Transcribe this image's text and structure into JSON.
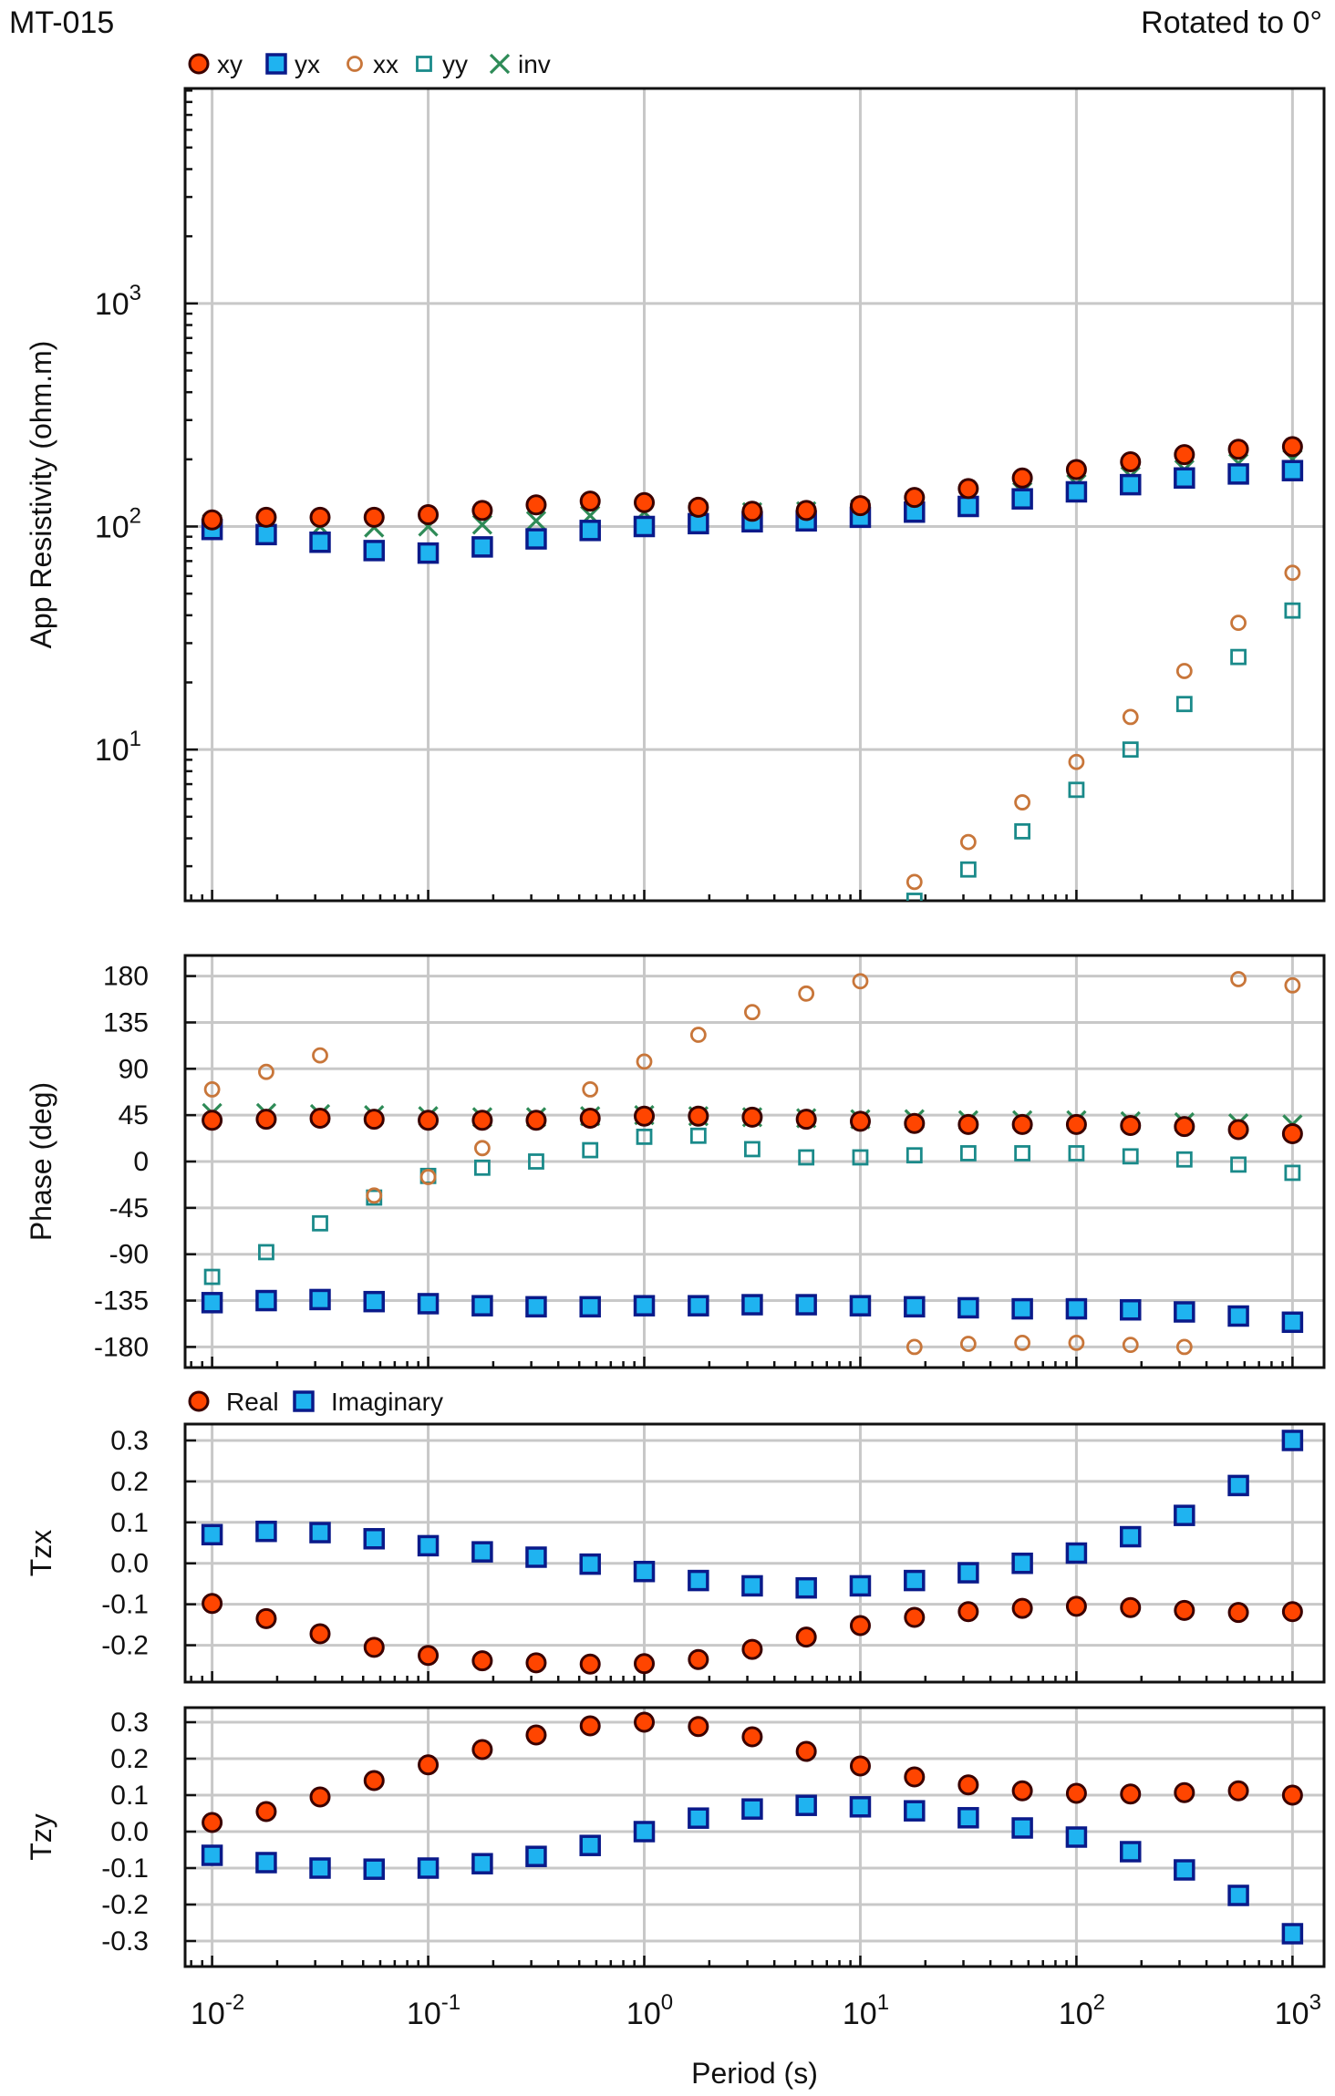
{
  "header": {
    "site": "MT-015",
    "rotation": "Rotated to 0°"
  },
  "colors": {
    "xy_fill": "#ff4500",
    "xy_edge": "#3a0000",
    "yx_fill": "#1fb3f0",
    "yx_edge": "#0a1a8a",
    "xx": "#c8763a",
    "yy": "#1a8a8a",
    "inv": "#2e8b57"
  },
  "x_axis": {
    "label": "Period (s)",
    "scale": "log",
    "range": [
      0.0075,
      1400
    ],
    "major_ticks": [
      0.01,
      0.1,
      1,
      10,
      100,
      1000
    ],
    "tick_labels": [
      {
        "base": "10",
        "exp": "-2"
      },
      {
        "base": "10",
        "exp": "-1"
      },
      {
        "base": "10",
        "exp": "0"
      },
      {
        "base": "10",
        "exp": "1"
      },
      {
        "base": "10",
        "exp": "2"
      },
      {
        "base": "10",
        "exp": "3"
      }
    ]
  },
  "legend_main": [
    "xy",
    "yx",
    "xx",
    "yy",
    "inv"
  ],
  "legend_tipper": [
    "Real",
    "Imaginary"
  ],
  "chart_data": [
    {
      "type": "scatter",
      "panel": "resistivity",
      "ylabel": "App Resistivity (ohm.m)",
      "yscale": "log",
      "ylim": [
        2.1,
        9200
      ],
      "y_ticks": [
        10,
        100,
        1000
      ],
      "y_tick_labels": [
        {
          "base": "10",
          "exp": "1"
        },
        {
          "base": "10",
          "exp": "2"
        },
        {
          "base": "10",
          "exp": "3"
        }
      ],
      "grid": true,
      "x": [
        0.01,
        0.0178,
        0.0316,
        0.0562,
        0.1,
        0.178,
        0.316,
        0.562,
        1,
        1.78,
        3.16,
        5.62,
        10,
        17.8,
        31.6,
        56.2,
        100,
        178,
        316,
        562,
        1000
      ],
      "series": [
        {
          "name": "xy",
          "values": [
            107,
            110,
            110,
            110,
            113,
            118,
            125,
            130,
            128,
            122,
            117,
            118,
            124,
            135,
            148,
            165,
            180,
            195,
            210,
            222,
            228
          ]
        },
        {
          "name": "yx",
          "values": [
            97,
            92,
            85,
            78,
            76,
            81,
            88,
            96,
            100,
            103,
            105,
            106,
            110,
            116,
            123,
            133,
            143,
            154,
            165,
            172,
            178
          ]
        },
        {
          "name": "xx",
          "x": [
            17.8,
            31.6,
            56.2,
            100,
            178,
            316,
            562,
            1000
          ],
          "values": [
            2.55,
            3.85,
            5.8,
            8.8,
            14,
            22.5,
            37,
            62
          ]
        },
        {
          "name": "yy",
          "x": [
            17.8,
            31.6,
            56.2,
            100,
            178,
            316,
            562,
            1000
          ],
          "values": [
            2.1,
            2.9,
            4.3,
            6.6,
            10,
            16,
            26,
            42
          ]
        },
        {
          "name": "inv",
          "values": [
            103,
            102,
            100,
            99,
            100,
            102,
            106,
            112,
            116,
            117,
            116,
            117,
            120,
            125,
            133,
            143,
            155,
            168,
            180,
            192,
            200
          ]
        }
      ]
    },
    {
      "type": "scatter",
      "panel": "phase",
      "ylabel": "Phase (deg)",
      "ylim": [
        -200,
        200
      ],
      "y_ticks": [
        180,
        135,
        90,
        45,
        0,
        -45,
        -90,
        -135,
        -180
      ],
      "y_tick_labels": [
        "180",
        "135",
        "90",
        "45",
        "0",
        "-45",
        "-90",
        "-135",
        "-180"
      ],
      "grid": true,
      "x": [
        0.01,
        0.0178,
        0.0316,
        0.0562,
        0.1,
        0.178,
        0.316,
        0.562,
        1,
        1.78,
        3.16,
        5.62,
        10,
        17.8,
        31.6,
        56.2,
        100,
        178,
        316,
        562,
        1000
      ],
      "series": [
        {
          "name": "xy",
          "values": [
            40,
            41,
            42,
            41,
            40,
            40,
            40,
            42,
            44,
            44,
            43,
            41,
            39,
            37,
            36,
            36,
            36,
            35,
            34,
            31,
            27
          ]
        },
        {
          "name": "yx",
          "values": [
            -137,
            -135,
            -134,
            -136,
            -138,
            -140,
            -141,
            -141,
            -140,
            -140,
            -139,
            -139,
            -140,
            -141,
            -142,
            -143,
            -143,
            -144,
            -146,
            -150,
            -156
          ]
        },
        {
          "name": "xx",
          "x": [
            0.01,
            0.0178,
            0.0316,
            0.0562,
            0.1,
            0.178,
            0.562,
            1,
            1.78,
            3.16,
            5.62,
            10,
            17.8,
            31.6,
            56.2,
            100,
            178,
            316,
            562,
            1000
          ],
          "values": [
            70,
            87,
            103,
            -33,
            -15,
            13,
            70,
            97,
            123,
            145,
            163,
            175,
            -180,
            -177,
            -176,
            -176,
            -178,
            -180,
            177,
            171
          ]
        },
        {
          "name": "yy",
          "values": [
            -112,
            -88,
            -60,
            -35,
            -14,
            -6,
            0,
            11,
            24,
            25,
            12,
            4,
            4,
            6,
            8,
            8,
            8,
            5,
            2,
            -3,
            -11
          ]
        },
        {
          "name": "inv",
          "values": [
            47,
            47,
            46,
            45,
            44,
            43,
            43,
            44,
            45,
            44,
            43,
            42,
            41,
            41,
            40,
            40,
            40,
            39,
            38,
            37,
            36
          ]
        }
      ]
    },
    {
      "type": "scatter",
      "panel": "tzx",
      "ylabel": "Tzx",
      "ylim": [
        -0.29,
        0.34
      ],
      "y_ticks": [
        0.3,
        0.2,
        0.1,
        0.0,
        -0.1,
        -0.2
      ],
      "y_tick_labels": [
        "0.3",
        "0.2",
        "0.1",
        "0.0",
        "-0.1",
        "-0.2"
      ],
      "grid": true,
      "x": [
        0.01,
        0.0178,
        0.0316,
        0.0562,
        0.1,
        0.178,
        0.316,
        0.562,
        1,
        1.78,
        3.16,
        5.62,
        10,
        17.8,
        31.6,
        56.2,
        100,
        178,
        316,
        562,
        1000
      ],
      "series": [
        {
          "name": "Real",
          "values": [
            -0.098,
            -0.135,
            -0.172,
            -0.205,
            -0.225,
            -0.238,
            -0.243,
            -0.246,
            -0.245,
            -0.235,
            -0.21,
            -0.18,
            -0.152,
            -0.132,
            -0.118,
            -0.11,
            -0.105,
            -0.108,
            -0.115,
            -0.12,
            -0.118
          ]
        },
        {
          "name": "Imaginary",
          "values": [
            0.07,
            0.078,
            0.075,
            0.06,
            0.043,
            0.028,
            0.015,
            -0.002,
            -0.02,
            -0.042,
            -0.055,
            -0.06,
            -0.055,
            -0.042,
            -0.023,
            0.0,
            0.025,
            0.065,
            0.117,
            0.19,
            0.3
          ]
        }
      ]
    },
    {
      "type": "scatter",
      "panel": "tzy",
      "ylabel": "Tzy",
      "ylim": [
        -0.37,
        0.34
      ],
      "y_ticks": [
        0.3,
        0.2,
        0.1,
        0.0,
        -0.1,
        -0.2,
        -0.3
      ],
      "y_tick_labels": [
        "0.3",
        "0.2",
        "0.1",
        "0.0",
        "-0.1",
        "-0.2",
        "-0.3"
      ],
      "grid": true,
      "x": [
        0.01,
        0.0178,
        0.0316,
        0.0562,
        0.1,
        0.178,
        0.316,
        0.562,
        1,
        1.78,
        3.16,
        5.62,
        10,
        17.8,
        31.6,
        56.2,
        100,
        178,
        316,
        562,
        1000
      ],
      "series": [
        {
          "name": "Real",
          "values": [
            0.025,
            0.055,
            0.095,
            0.14,
            0.183,
            0.225,
            0.265,
            0.29,
            0.3,
            0.288,
            0.26,
            0.22,
            0.18,
            0.15,
            0.128,
            0.112,
            0.105,
            0.103,
            0.107,
            0.112,
            0.1
          ]
        },
        {
          "name": "Imaginary",
          "values": [
            -0.065,
            -0.085,
            -0.1,
            -0.103,
            -0.1,
            -0.088,
            -0.068,
            -0.038,
            0.0,
            0.037,
            0.062,
            0.072,
            0.068,
            0.057,
            0.038,
            0.01,
            -0.015,
            -0.055,
            -0.105,
            -0.175,
            -0.28
          ]
        }
      ]
    }
  ]
}
